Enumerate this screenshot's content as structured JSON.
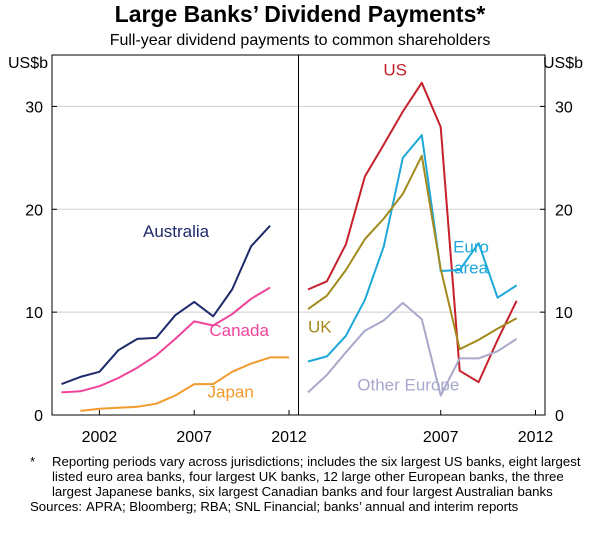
{
  "chart_data": {
    "type": "line",
    "title": "Large Banks’ Dividend Payments*",
    "subtitle": "Full-year dividend payments to common shareholders",
    "ylabel_left": "US$b",
    "ylabel_right": "US$b",
    "ylim": [
      0,
      35
    ],
    "yticks": [
      "0",
      "10",
      "20",
      "30"
    ],
    "panels": [
      {
        "xticks": [
          "2002",
          "2007",
          "2012"
        ],
        "series": [
          {
            "name": "Australia",
            "color": "#1f2a6b",
            "x": [
              2000,
              2001,
              2002,
              2003,
              2004,
              2005,
              2006,
              2007,
              2008,
              2009,
              2010,
              2011,
              2012
            ],
            "y": [
              3.0,
              3.7,
              4.2,
              6.3,
              7.4,
              7.5,
              9.7,
              11.0,
              9.6,
              12.2,
              16.4,
              18.4,
              null
            ]
          },
          {
            "name": "Canada",
            "color": "#f0449a",
            "x": [
              2000,
              2001,
              2002,
              2003,
              2004,
              2005,
              2006,
              2007,
              2008,
              2009,
              2010,
              2011,
              2012
            ],
            "y": [
              2.2,
              2.3,
              2.8,
              3.6,
              4.6,
              5.8,
              7.4,
              9.1,
              8.7,
              9.8,
              11.3,
              12.4,
              null
            ]
          },
          {
            "name": "Japan",
            "color": "#f39a2d",
            "x": [
              2001,
              2002,
              2003,
              2004,
              2005,
              2006,
              2007,
              2008,
              2009,
              2010,
              2011,
              2012
            ],
            "y": [
              0.4,
              0.6,
              0.7,
              0.8,
              1.1,
              1.9,
              3.0,
              3.0,
              4.2,
              5.0,
              5.6,
              5.6
            ]
          }
        ]
      },
      {
        "xticks": [
          "2007",
          "2012"
        ],
        "series": [
          {
            "name": "US",
            "color": "#c6202a",
            "x": [
              2000,
              2001,
              2002,
              2003,
              2004,
              2005,
              2006,
              2007,
              2008,
              2009,
              2010,
              2011,
              2012
            ],
            "y": [
              12.2,
              13.0,
              16.6,
              23.2,
              26.3,
              29.5,
              32.3,
              28.0,
              4.3,
              3.2,
              7.3,
              11.1,
              null
            ]
          },
          {
            "name": "Euro area",
            "color": "#1ea8d9",
            "x": [
              2000,
              2001,
              2002,
              2003,
              2004,
              2005,
              2006,
              2007,
              2008,
              2009,
              2010,
              2011,
              2012
            ],
            "y": [
              5.2,
              5.7,
              7.7,
              11.2,
              16.4,
              25.0,
              27.2,
              14.0,
              14.1,
              16.7,
              11.4,
              12.6,
              null
            ]
          },
          {
            "name": "UK",
            "color": "#a38a1c",
            "x": [
              2000,
              2001,
              2002,
              2003,
              2004,
              2005,
              2006,
              2007,
              2008,
              2009,
              2010,
              2011,
              2012
            ],
            "y": [
              10.3,
              11.6,
              14.1,
              17.1,
              19.1,
              21.5,
              25.2,
              14.2,
              6.4,
              7.3,
              8.4,
              9.4,
              null
            ]
          },
          {
            "name": "Other Europe",
            "color": "#a8a8cc",
            "x": [
              2000,
              2001,
              2002,
              2003,
              2004,
              2005,
              2006,
              2007,
              2008,
              2009,
              2010,
              2011,
              2012
            ],
            "y": [
              2.2,
              3.9,
              6.1,
              8.2,
              9.2,
              10.9,
              9.3,
              1.9,
              5.5,
              5.5,
              6.2,
              7.4,
              null
            ]
          }
        ]
      }
    ]
  },
  "notes": {
    "asterisk": "*",
    "footnote": "Reporting periods vary across jurisdictions; includes the six largest US banks, eight largest listed euro area banks, four largest UK banks, 12 large other European banks, the three largest Japanese banks, six largest Canadian banks and four largest Australian banks",
    "sources_label": "Sources:",
    "sources": "APRA; Bloomberg; RBA; SNL Financial; banks’ annual and interim reports"
  }
}
